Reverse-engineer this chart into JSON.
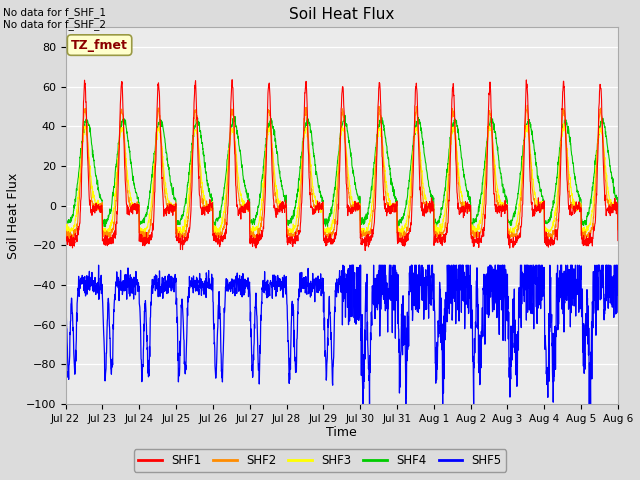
{
  "title": "Soil Heat Flux",
  "ylabel": "Soil Heat Flux",
  "xlabel": "Time",
  "ylim": [
    -100,
    90
  ],
  "yticks": [
    -100,
    -80,
    -60,
    -40,
    -20,
    0,
    20,
    40,
    60,
    80
  ],
  "x_labels": [
    "Jul 22",
    "Jul 23",
    "Jul 24",
    "Jul 25",
    "Jul 26",
    "Jul 27",
    "Jul 28",
    "Jul 29",
    "Jul 30",
    "Jul 31",
    "Aug 1",
    "Aug 2",
    "Aug 3",
    "Aug 4",
    "Aug 5",
    "Aug 6"
  ],
  "no_data_text_1": "No data for f_SHF_1",
  "no_data_text_2": "No data for f_SHF_2",
  "legend_label": "TZ_fmet",
  "colors": {
    "SHF1": "#FF0000",
    "SHF2": "#FF8C00",
    "SHF3": "#FFFF00",
    "SHF4": "#00CC00",
    "SHF5": "#0000FF"
  },
  "legend_entries": [
    "SHF1",
    "SHF2",
    "SHF3",
    "SHF4",
    "SHF5"
  ],
  "bg_color": "#DCDCDC",
  "plot_bg": "#EBEBEB",
  "n_days": 15,
  "points_per_day": 144
}
